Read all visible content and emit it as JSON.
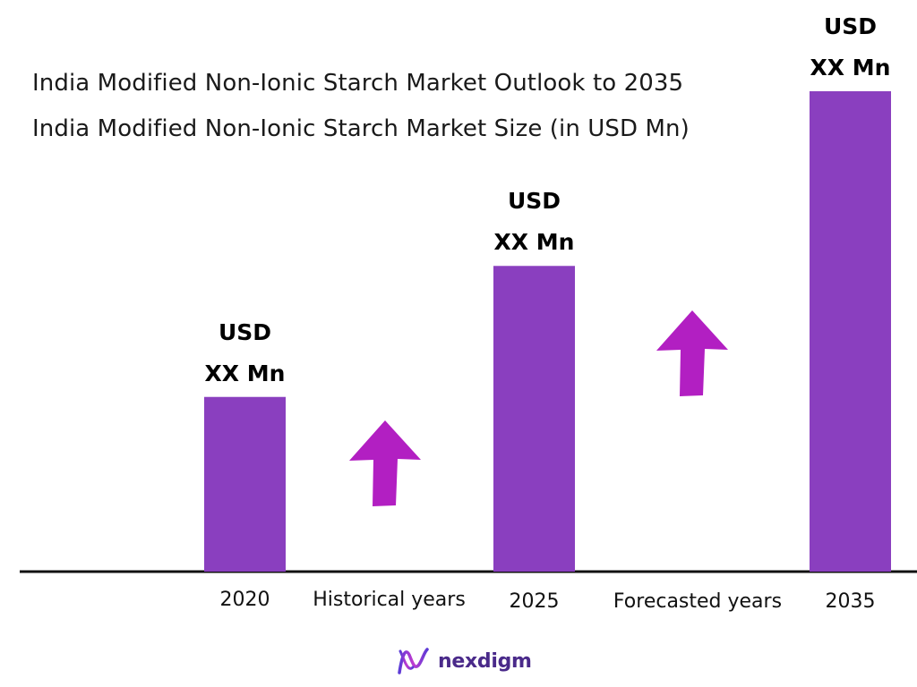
{
  "titles": {
    "main": "India Modified Non-Ionic Starch Market Outlook to 2035",
    "sub": "India Modified Non-Ionic Starch Market Size (in USD Mn)"
  },
  "chart_data": {
    "type": "bar",
    "title": "India Modified Non-Ionic Starch Market Outlook to 2035",
    "subtitle": "India Modified Non-Ionic Starch Market Size (in USD Mn)",
    "categories": [
      "2020",
      "2025",
      "2035"
    ],
    "values": [
      1.0,
      1.75,
      2.75
    ],
    "value_labels": [
      {
        "line1": "USD",
        "line2": "XX Mn"
      },
      {
        "line1": "USD",
        "line2": "XX Mn"
      },
      {
        "line1": "USD",
        "line2": "XX Mn"
      }
    ],
    "segment_labels": [
      "Historical years",
      "Forecasted years"
    ],
    "ylim": [
      0,
      2.75
    ],
    "grid": false,
    "bar_color": "#8a3fbf",
    "arrow_color": "#b21fc2",
    "axis_color": "#111111"
  },
  "brand": {
    "name": "nexdigm",
    "color": "#4a2a8a"
  }
}
